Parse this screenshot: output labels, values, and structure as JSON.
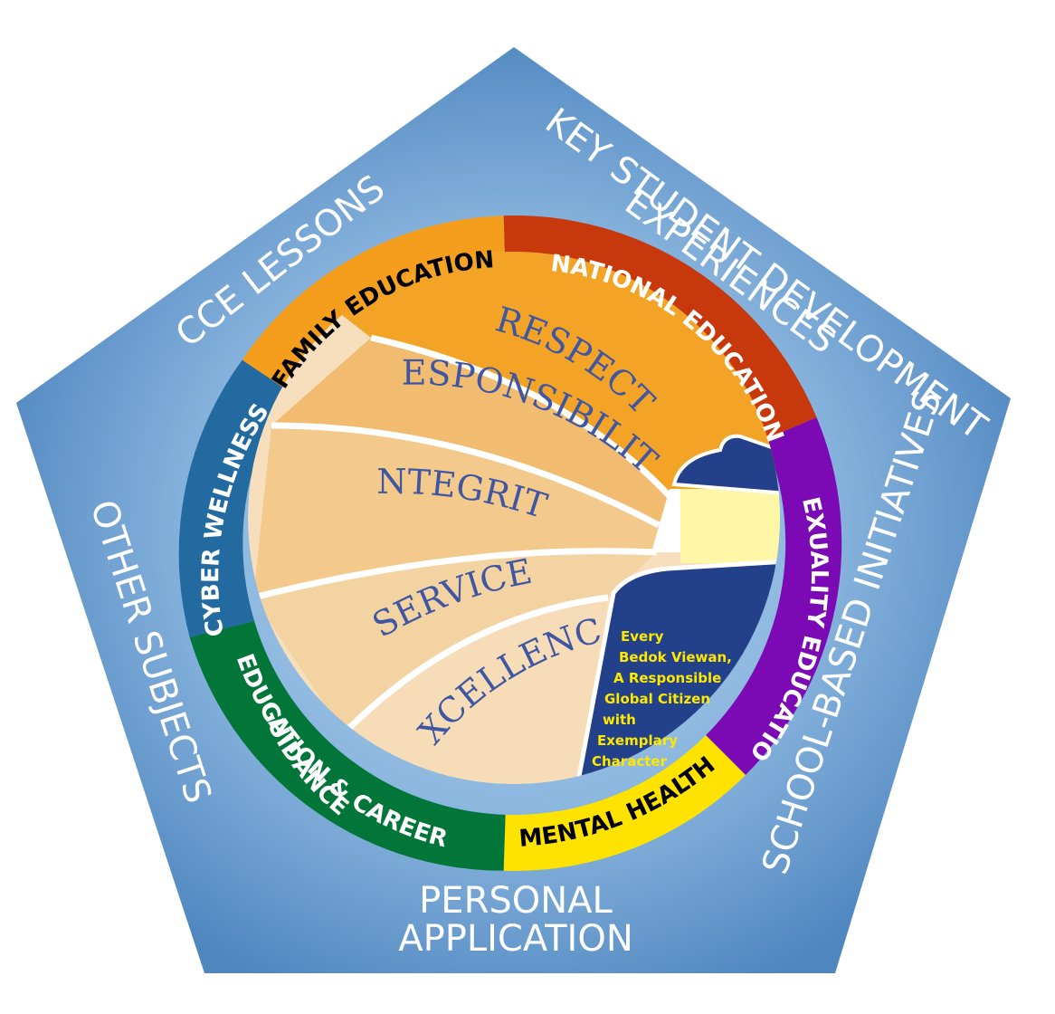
{
  "pentagon": {
    "labels": {
      "cce_lessons": "CCE LESSONS",
      "key_student_dev_line1": "KEY STUDENT DEVELOPMENT",
      "key_student_dev_line2": "EXPERIENCES",
      "other_subjects": "OTHER SUBJECTS",
      "school_based": "SCHOOL-BASED INITIATIVES",
      "personal_app_line1": "PERSONAL",
      "personal_app_line2": "APPLICATION"
    },
    "colors": {
      "fill_center": "#a9c8e6",
      "fill_edge": "#4f86c0"
    }
  },
  "ring": {
    "family_education": "FAMILY EDUCATION",
    "national_education": "NATIONAL EDUCATION",
    "sexuality_education": "SEXUALITY EDUCATION",
    "mental_health": "MENTAL HEALTH",
    "ecg_line1": "EDUCATION & CAREER",
    "ecg_line2": "GUIDANCE",
    "cyber_wellness": "CYBER WELLNESS",
    "colors": {
      "family": "#f59e1e",
      "national": "#c7380d",
      "sexuality": "#7b09b4",
      "mental": "#ffe300",
      "ecg": "#027638",
      "cyber": "#236aa1"
    }
  },
  "values": {
    "respect": "RESPECT",
    "responsibility": "RESPONSIBILITY",
    "integrity": "INTEGRITY",
    "service": "SERVICE",
    "excellence": "EXCELLENCE"
  },
  "motto": {
    "line1": "Every",
    "line2": "Bedok Viewan,",
    "line3": "A Responsible",
    "line4": "Global Citizen",
    "line5": "with",
    "line6": "Exemplary",
    "line7": "Character"
  }
}
